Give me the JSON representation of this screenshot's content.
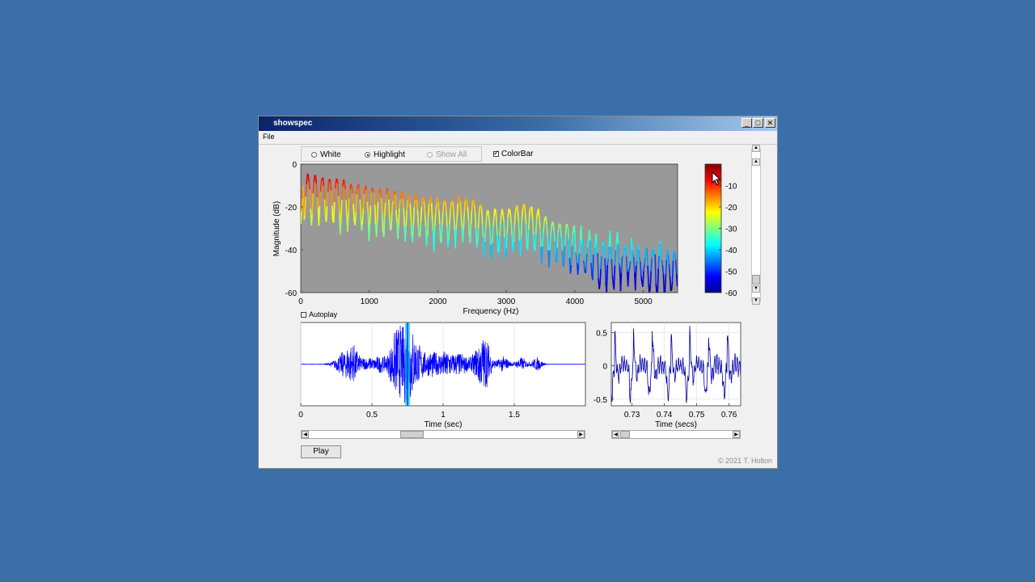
{
  "window": {
    "title": "showspec",
    "min_label": "_",
    "max_label": "□",
    "close_label": "✕"
  },
  "menu": {
    "file": "File"
  },
  "options": {
    "white": "White",
    "highlight": "Highlight",
    "show_all": "Show All",
    "selected": "Highlight",
    "colorbar": "ColorBar",
    "colorbar_checked": true,
    "autoplay": "Autoplay",
    "autoplay_checked": false
  },
  "spectrum": {
    "ylabel": "Magnitude (dB)",
    "xlabel": "Frequency (Hz)",
    "xticks": [
      "0",
      "1000",
      "2000",
      "3000",
      "4000",
      "5000"
    ],
    "yticks": [
      "0",
      "-20",
      "-40",
      "-60"
    ],
    "xlim": [
      0,
      5500
    ],
    "ylim": [
      -60,
      0
    ],
    "background": "#999999"
  },
  "colorbar": {
    "ticks": [
      "-10",
      "-20",
      "-30",
      "-40",
      "-50",
      "-60"
    ],
    "colormap": "jet"
  },
  "waveform": {
    "xlabel": "Time (sec)",
    "xticks": [
      "0",
      "0.5",
      "1",
      "1.5"
    ],
    "xlim": [
      0,
      2
    ],
    "highlight_time": 0.75,
    "color": "#0000ff",
    "highlight_color": "#00c8ff"
  },
  "zoom": {
    "xlabel": "Time (secs)",
    "xticks": [
      "0.73",
      "0.74",
      "0.75",
      "0.76"
    ],
    "yticks": [
      "0.5",
      "0",
      "-0.5"
    ],
    "xlim": [
      0.7236,
      0.7636
    ],
    "ylim": [
      -0.6,
      0.65
    ],
    "color": "#0000aa"
  },
  "buttons": {
    "play": "Play"
  },
  "footer": {
    "copyright": "© 2021 T. Holton"
  }
}
